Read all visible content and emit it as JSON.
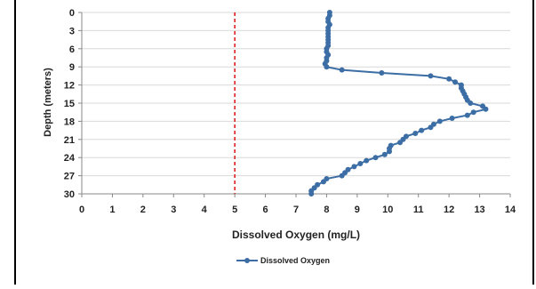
{
  "chart_data": {
    "type": "line",
    "title": "",
    "xlabel": "Dissolved Oxygen (mg/L)",
    "ylabel": "Depth (meters)",
    "xlim": [
      0,
      14
    ],
    "ylim": [
      0,
      30
    ],
    "y_inverted": true,
    "x_ticks": [
      "0",
      "1",
      "2",
      "3",
      "4",
      "5",
      "6",
      "7",
      "8",
      "9",
      "10",
      "11",
      "12",
      "13",
      "14"
    ],
    "y_ticks": [
      "0",
      "3",
      "6",
      "9",
      "12",
      "15",
      "18",
      "21",
      "24",
      "27",
      "30"
    ],
    "grid": "horizontal",
    "legend_position": "bottom-center",
    "reference_line": {
      "x": 5,
      "color": "#e02020",
      "style": "dashed"
    },
    "series": [
      {
        "name": "Dissolved Oxygen",
        "color": "#3c6ea5",
        "points": [
          [
            8.1,
            0
          ],
          [
            8.1,
            0.5
          ],
          [
            8.05,
            1
          ],
          [
            8.05,
            1.5
          ],
          [
            8.1,
            2
          ],
          [
            8.05,
            2.5
          ],
          [
            8.05,
            3
          ],
          [
            8.05,
            3.5
          ],
          [
            8.05,
            4
          ],
          [
            8.05,
            4.5
          ],
          [
            8.05,
            5
          ],
          [
            8.05,
            5.5
          ],
          [
            8.0,
            6
          ],
          [
            8.0,
            6.5
          ],
          [
            8.05,
            7
          ],
          [
            8.0,
            7.5
          ],
          [
            8.0,
            8
          ],
          [
            7.95,
            8.5
          ],
          [
            8.0,
            9
          ],
          [
            8.5,
            9.5
          ],
          [
            9.8,
            10
          ],
          [
            11.4,
            10.5
          ],
          [
            12.0,
            11
          ],
          [
            12.2,
            11.5
          ],
          [
            12.4,
            12
          ],
          [
            12.4,
            12.5
          ],
          [
            12.45,
            13
          ],
          [
            12.5,
            13.5
          ],
          [
            12.55,
            14
          ],
          [
            12.6,
            14.5
          ],
          [
            12.7,
            15
          ],
          [
            13.1,
            15.5
          ],
          [
            13.2,
            16
          ],
          [
            12.8,
            16.5
          ],
          [
            12.6,
            17
          ],
          [
            12.1,
            17.5
          ],
          [
            11.7,
            18
          ],
          [
            11.5,
            18.5
          ],
          [
            11.4,
            19
          ],
          [
            11.1,
            19.5
          ],
          [
            10.9,
            20
          ],
          [
            10.6,
            20.5
          ],
          [
            10.5,
            21
          ],
          [
            10.4,
            21.5
          ],
          [
            10.1,
            22
          ],
          [
            10.05,
            22.5
          ],
          [
            10.05,
            23
          ],
          [
            9.9,
            23.5
          ],
          [
            9.6,
            24
          ],
          [
            9.3,
            24.5
          ],
          [
            9.1,
            25
          ],
          [
            8.9,
            25.5
          ],
          [
            8.7,
            26
          ],
          [
            8.6,
            26.5
          ],
          [
            8.5,
            27
          ],
          [
            8.0,
            27.5
          ],
          [
            7.9,
            28
          ],
          [
            7.7,
            28.5
          ],
          [
            7.6,
            29
          ],
          [
            7.5,
            29.5
          ],
          [
            7.5,
            30
          ]
        ]
      }
    ]
  }
}
